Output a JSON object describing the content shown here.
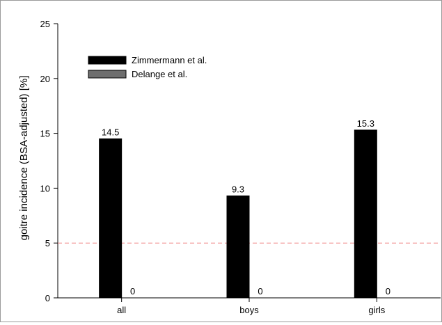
{
  "chart_data": {
    "type": "bar",
    "title": "",
    "xlabel": "",
    "ylabel": "goitre incidence (BSA-adjusted) [%]",
    "ylim": [
      0,
      25
    ],
    "yticks": [
      0,
      5,
      10,
      15,
      20,
      25
    ],
    "categories": [
      "all",
      "boys",
      "girls"
    ],
    "series": [
      {
        "name": "Zimmermann et al.",
        "values": [
          14.5,
          9.3,
          15.3
        ],
        "labels": [
          "14.5",
          "9.3",
          "15.3"
        ],
        "color": "#000000"
      },
      {
        "name": "Delange et al.",
        "values": [
          0,
          0,
          0
        ],
        "labels": [
          "0",
          "0",
          "0"
        ],
        "color": "#6e6e6e"
      }
    ],
    "reference_line": {
      "value": 5,
      "color": "#f08080",
      "style": "dashed"
    },
    "legend_position": "top-left",
    "grid": false
  }
}
